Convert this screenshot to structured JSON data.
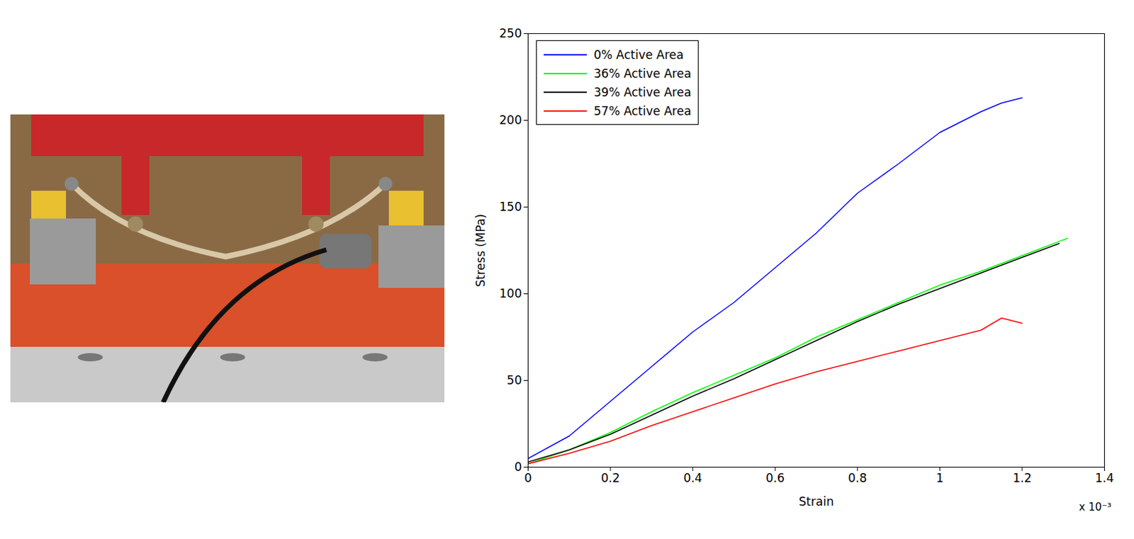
{
  "chart_data": {
    "type": "line",
    "xlabel": "Strain",
    "ylabel": "Stress (MPa)",
    "x_multiplier": "x 10⁻³",
    "xlim": [
      0,
      1.4
    ],
    "xticks": [
      0,
      0.2,
      0.4,
      0.6,
      0.8,
      1,
      1.2,
      1.4
    ],
    "ylim": [
      0,
      250
    ],
    "yticks": [
      0,
      50,
      100,
      150,
      200,
      250
    ],
    "grid": false,
    "legend": "top-left",
    "series": [
      {
        "name": "0% Active Area",
        "color": "#0000ff",
        "x": [
          0,
          0.1,
          0.2,
          0.3,
          0.4,
          0.5,
          0.6,
          0.7,
          0.8,
          0.9,
          1.0,
          1.1,
          1.15,
          1.2
        ],
        "values": [
          5,
          18,
          38,
          58,
          78,
          95,
          115,
          135,
          158,
          175,
          193,
          205,
          210,
          213
        ]
      },
      {
        "name": "36% Active Area",
        "color": "#00ff00",
        "x": [
          0,
          0.1,
          0.2,
          0.3,
          0.4,
          0.5,
          0.6,
          0.7,
          0.8,
          0.9,
          1.0,
          1.1,
          1.2,
          1.31
        ],
        "values": [
          2,
          10,
          20,
          32,
          43,
          53,
          63,
          75,
          85,
          95,
          105,
          113,
          122,
          132
        ]
      },
      {
        "name": "39% Active Area",
        "color": "#000000",
        "x": [
          0,
          0.1,
          0.2,
          0.3,
          0.4,
          0.5,
          0.6,
          0.7,
          0.8,
          0.9,
          1.0,
          1.1,
          1.2,
          1.29
        ],
        "values": [
          3,
          10,
          19,
          30,
          41,
          51,
          62,
          73,
          84,
          94,
          103,
          112,
          121,
          129
        ]
      },
      {
        "name": "57% Active Area",
        "color": "#ff0000",
        "x": [
          0,
          0.1,
          0.2,
          0.3,
          0.4,
          0.5,
          0.6,
          0.7,
          0.8,
          0.9,
          1.0,
          1.1,
          1.15,
          1.2
        ],
        "values": [
          2,
          8,
          15,
          24,
          32,
          40,
          48,
          55,
          61,
          67,
          73,
          79,
          86,
          83
        ]
      }
    ]
  }
}
